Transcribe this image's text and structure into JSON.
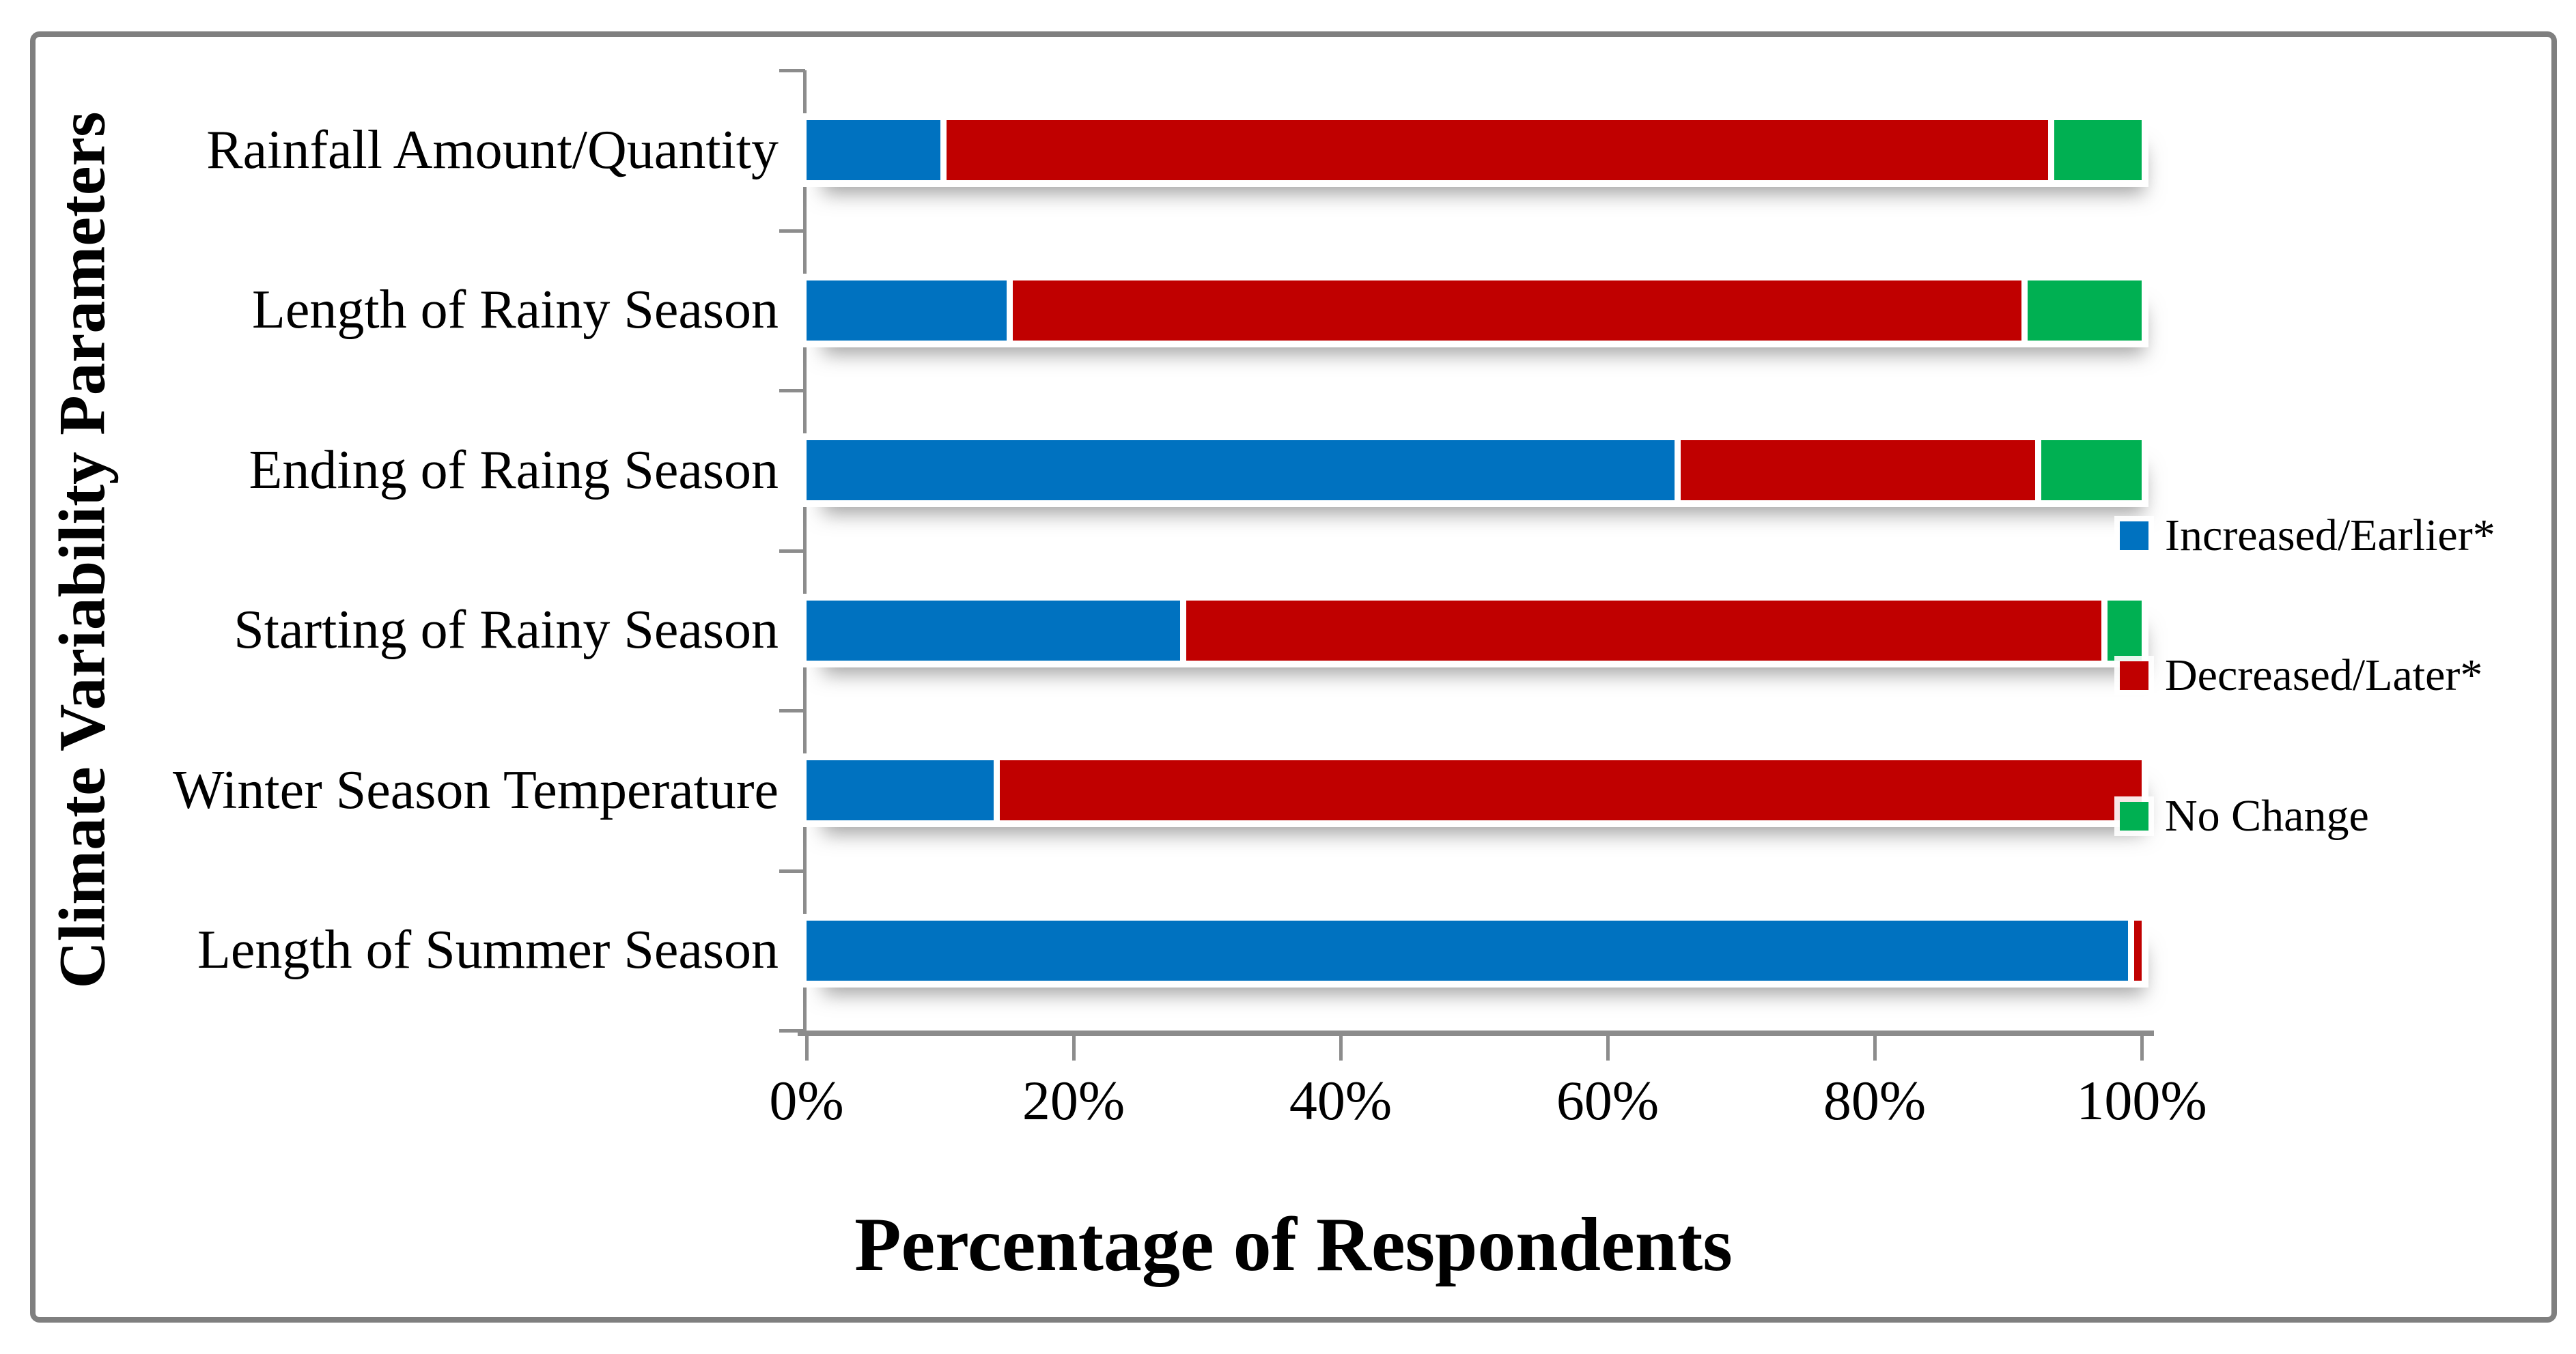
{
  "figure": {
    "background_color": "#FFFFFF",
    "frame_color": "#7F7F7F",
    "axis_color": "#8C8C8C",
    "text_color": "#000000"
  },
  "chart_data": {
    "type": "bar",
    "variant": "horizontal_stacked",
    "title": "",
    "xlabel": "Percentage of Respondents",
    "ylabel": "Climate Variability Parameters",
    "categories": [
      "Rainfall Amount/Quantity",
      "Length of Rainy Season",
      "Ending of Raing Season",
      "Starting of Rainy Season",
      "Winter Season Temperature",
      "Length of Summer Season"
    ],
    "series": [
      {
        "name": "Increased/Earlier*",
        "color": "#0072C0",
        "values": [
          10,
          15,
          65,
          28,
          14,
          99
        ]
      },
      {
        "name": "Decreased/Later*",
        "color": "#C00000",
        "values": [
          83,
          76,
          27,
          69,
          86,
          1
        ]
      },
      {
        "name": "No Change",
        "color": "#00B052",
        "values": [
          7,
          9,
          8,
          3,
          0,
          0
        ]
      }
    ],
    "x_ticks": [
      "0%",
      "20%",
      "40%",
      "60%",
      "80%",
      "100%"
    ],
    "xlim": [
      0,
      100
    ],
    "grid": false,
    "legend_position": "right-middle"
  }
}
